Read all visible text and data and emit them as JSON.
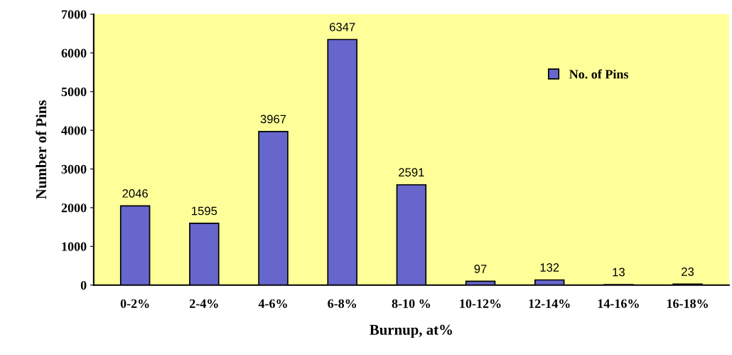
{
  "chart_data": {
    "type": "bar",
    "xlabel": "Burnup, at%",
    "ylabel": "Number of Pins",
    "categories": [
      "0-2%",
      "2-4%",
      "4-6%",
      "6-8%",
      "8-10 %",
      "10-12%",
      "12-14%",
      "14-16%",
      "16-18%"
    ],
    "series": [
      {
        "name": "No. of Pins",
        "color": "#6666cc",
        "values": [
          2046,
          1595,
          3967,
          6347,
          2591,
          97,
          132,
          13,
          23
        ]
      }
    ],
    "ylim": [
      0,
      7000
    ],
    "yticks": [
      0,
      1000,
      2000,
      3000,
      4000,
      5000,
      6000,
      7000
    ],
    "data_labels": true,
    "grid": false,
    "legend": "top right"
  }
}
